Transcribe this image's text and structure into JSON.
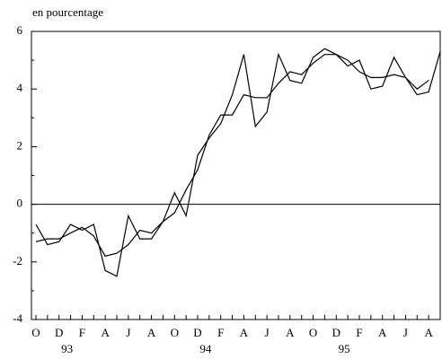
{
  "chart_data": {
    "type": "line",
    "y_axis_label": "en pourcentage",
    "categories": [
      "O",
      null,
      "D",
      null,
      "F",
      null,
      "A",
      null,
      "J",
      null,
      "A",
      null,
      "O",
      null,
      "D",
      null,
      "F",
      null,
      "A",
      null,
      "J",
      null,
      "A",
      null,
      "O",
      null,
      "D",
      null,
      "F",
      null,
      "A",
      null,
      "J",
      null,
      "A",
      null
    ],
    "year_categories": [
      null,
      null,
      null,
      "93",
      null,
      null,
      null,
      null,
      null,
      null,
      null,
      null,
      null,
      null,
      null,
      "94",
      null,
      null,
      null,
      null,
      null,
      null,
      null,
      null,
      null,
      null,
      null,
      "95",
      null,
      null,
      null,
      null,
      null,
      null,
      null,
      null
    ],
    "series": [
      {
        "color": "#000000",
        "values": [
          -0.7,
          -1.4,
          -1.3,
          -0.7,
          -0.9,
          -0.7,
          -2.3,
          -2.5,
          -0.4,
          -1.2,
          -1.2,
          -0.6,
          0.4,
          -0.4,
          1.7,
          2.3,
          2.8,
          3.8,
          5.2,
          2.7,
          3.2,
          5.2,
          4.3,
          4.2,
          5.1,
          5.4,
          5.2,
          4.8,
          5.0,
          4.0,
          4.1,
          5.1,
          4.4,
          3.8,
          3.9,
          5.3
        ]
      },
      {
        "color": "#000000",
        "values": [
          -1.3,
          -1.2,
          -1.2,
          -1.0,
          -0.8,
          -1.1,
          -1.8,
          -1.7,
          -1.4,
          -0.9,
          -1.0,
          -0.6,
          -0.3,
          0.5,
          1.2,
          2.4,
          3.1,
          3.1,
          3.8,
          3.7,
          3.7,
          4.2,
          4.6,
          4.5,
          4.9,
          5.2,
          5.2,
          5.0,
          4.6,
          4.4,
          4.4,
          4.5,
          4.4,
          4.0,
          4.3,
          null
        ]
      }
    ],
    "ylim": [
      -4,
      6
    ],
    "yticks": [
      -4,
      -2,
      0,
      2,
      4,
      6
    ],
    "zero_line": true
  }
}
